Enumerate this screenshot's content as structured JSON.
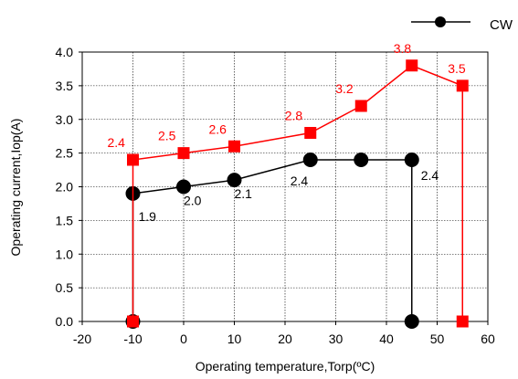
{
  "chart_data": {
    "type": "line",
    "xlabel": "Operating temperature,Torp(ºC)",
    "ylabel": "Operating current,Iop(A)",
    "xlim": [
      -20,
      60
    ],
    "ylim": [
      0,
      4
    ],
    "xticks": [
      "-20",
      "-10",
      "0",
      "10",
      "20",
      "30",
      "40",
      "50",
      "60"
    ],
    "yticks": [
      "0.0",
      "0.5",
      "1.0",
      "1.5",
      "2.0",
      "2.5",
      "3.0",
      "3.5",
      "4.0"
    ],
    "grid": true,
    "legend": "top-right",
    "series": [
      {
        "name": "CW",
        "color": "#000000",
        "marker": "circle",
        "x": [
          -10,
          -10,
          0,
          10,
          25,
          35,
          45,
          45
        ],
        "y": [
          0,
          1.9,
          2.0,
          2.1,
          2.4,
          2.4,
          2.4,
          0
        ],
        "labels": [
          {
            "x": -10,
            "y": 1.9,
            "text": "1.9"
          },
          {
            "x": 0,
            "y": 2.0,
            "text": "2.0"
          },
          {
            "x": 10,
            "y": 2.1,
            "text": "2.1"
          },
          {
            "x": 25,
            "y": 2.4,
            "text": "2.4"
          },
          {
            "x": 45,
            "y": 2.4,
            "text": "2.4"
          }
        ]
      },
      {
        "name": "",
        "color": "#ff0000",
        "marker": "square",
        "x": [
          -10,
          -10,
          0,
          10,
          25,
          35,
          45,
          55,
          55
        ],
        "y": [
          0,
          2.4,
          2.5,
          2.6,
          2.8,
          3.2,
          3.8,
          3.5,
          0
        ],
        "labels": [
          {
            "x": -10,
            "y": 2.4,
            "text": "2.4"
          },
          {
            "x": 0,
            "y": 2.5,
            "text": "2.5"
          },
          {
            "x": 10,
            "y": 2.6,
            "text": "2.6"
          },
          {
            "x": 25,
            "y": 2.8,
            "text": "2.8"
          },
          {
            "x": 35,
            "y": 3.2,
            "text": "3.2"
          },
          {
            "x": 45,
            "y": 3.8,
            "text": "3.8"
          },
          {
            "x": 55,
            "y": 3.5,
            "text": "3.5"
          }
        ]
      }
    ]
  }
}
